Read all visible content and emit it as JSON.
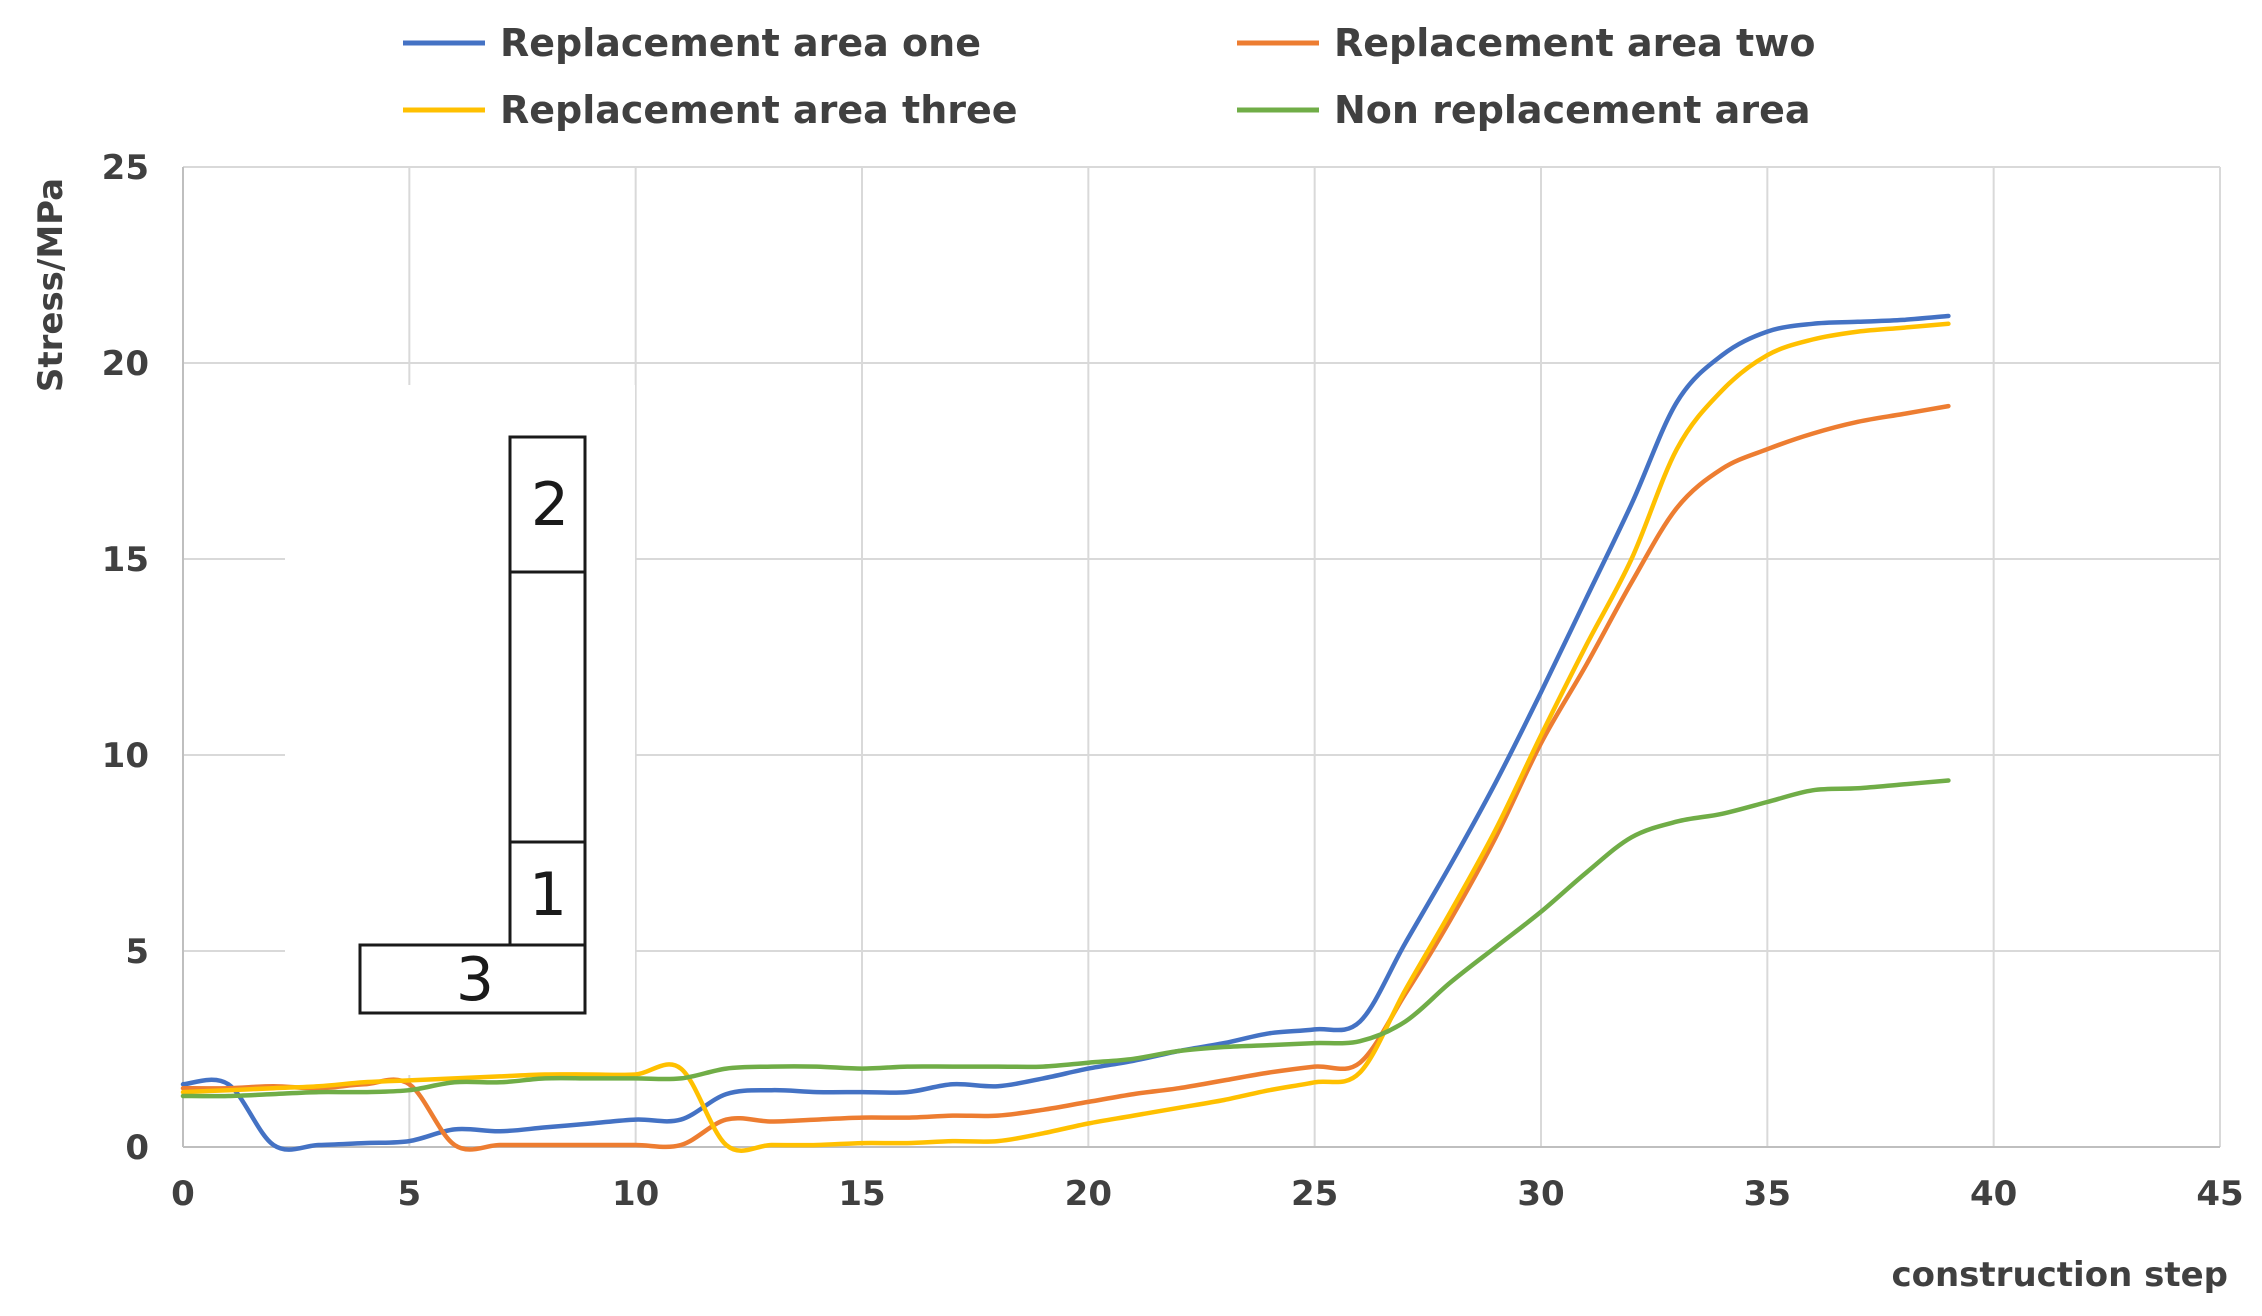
{
  "chart_data": {
    "type": "line",
    "title": "",
    "xlabel": "construction step",
    "ylabel": "Stress/MPa",
    "xlim": [
      0,
      45
    ],
    "ylim": [
      0,
      25
    ],
    "xticks": [
      0,
      5,
      10,
      15,
      20,
      25,
      30,
      35,
      40,
      45
    ],
    "yticks": [
      0,
      5,
      10,
      15,
      20,
      25
    ],
    "grid": true,
    "legend_position": "top",
    "series": [
      {
        "name": "Replacement area one",
        "color": "#4472C4",
        "x": [
          0,
          1,
          2,
          3,
          4,
          5,
          6,
          7,
          8,
          9,
          10,
          11,
          12,
          13,
          14,
          15,
          16,
          17,
          18,
          19,
          20,
          21,
          22,
          23,
          24,
          25,
          26,
          27,
          28,
          29,
          30,
          31,
          32,
          33,
          34,
          35,
          36,
          37,
          38,
          39
        ],
        "values": [
          1.6,
          1.6,
          0.05,
          0.05,
          0.1,
          0.15,
          0.45,
          0.4,
          0.5,
          0.6,
          0.7,
          0.7,
          1.35,
          1.45,
          1.4,
          1.4,
          1.4,
          1.6,
          1.55,
          1.75,
          2.0,
          2.2,
          2.45,
          2.65,
          2.9,
          3.0,
          3.2,
          5.2,
          7.2,
          9.3,
          11.6,
          14.0,
          16.4,
          19.0,
          20.2,
          20.8,
          21.0,
          21.05,
          21.1,
          21.2
        ]
      },
      {
        "name": "Replacement area two",
        "color": "#ED7D31",
        "x": [
          0,
          1,
          2,
          3,
          4,
          5,
          6,
          7,
          8,
          9,
          10,
          11,
          12,
          13,
          14,
          15,
          16,
          17,
          18,
          19,
          20,
          21,
          22,
          23,
          24,
          25,
          26,
          27,
          28,
          29,
          30,
          31,
          32,
          33,
          34,
          35,
          36,
          37,
          38,
          39
        ],
        "values": [
          1.5,
          1.5,
          1.55,
          1.5,
          1.6,
          1.6,
          0.05,
          0.05,
          0.05,
          0.05,
          0.05,
          0.05,
          0.7,
          0.65,
          0.7,
          0.75,
          0.75,
          0.8,
          0.8,
          0.95,
          1.15,
          1.35,
          1.5,
          1.7,
          1.9,
          2.05,
          2.15,
          3.9,
          5.8,
          7.9,
          10.3,
          12.3,
          14.4,
          16.3,
          17.3,
          17.8,
          18.2,
          18.5,
          18.7,
          18.9
        ]
      },
      {
        "name": "Replacement area three",
        "color": "#FFC000",
        "x": [
          0,
          1,
          2,
          3,
          4,
          5,
          6,
          7,
          8,
          9,
          10,
          11,
          12,
          13,
          14,
          15,
          16,
          17,
          18,
          19,
          20,
          21,
          22,
          23,
          24,
          25,
          26,
          27,
          28,
          29,
          30,
          31,
          32,
          33,
          34,
          35,
          36,
          37,
          38,
          39
        ],
        "values": [
          1.4,
          1.45,
          1.5,
          1.55,
          1.65,
          1.7,
          1.75,
          1.8,
          1.85,
          1.85,
          1.85,
          2.0,
          0.05,
          0.05,
          0.05,
          0.1,
          0.1,
          0.15,
          0.15,
          0.35,
          0.6,
          0.8,
          1.0,
          1.2,
          1.45,
          1.65,
          1.9,
          4.0,
          6.0,
          8.1,
          10.5,
          12.8,
          15.0,
          17.8,
          19.3,
          20.2,
          20.6,
          20.8,
          20.9,
          21.0
        ]
      },
      {
        "name": "Non replacement area",
        "color": "#70AD47",
        "x": [
          0,
          1,
          2,
          3,
          4,
          5,
          6,
          7,
          8,
          9,
          10,
          11,
          12,
          13,
          14,
          15,
          16,
          17,
          18,
          19,
          20,
          21,
          22,
          23,
          24,
          25,
          26,
          27,
          28,
          29,
          30,
          31,
          32,
          33,
          34,
          35,
          36,
          37,
          38,
          39
        ],
        "values": [
          1.3,
          1.3,
          1.35,
          1.4,
          1.4,
          1.45,
          1.65,
          1.65,
          1.75,
          1.75,
          1.75,
          1.75,
          2.0,
          2.05,
          2.05,
          2.0,
          2.05,
          2.05,
          2.05,
          2.05,
          2.15,
          2.25,
          2.45,
          2.55,
          2.6,
          2.65,
          2.7,
          3.2,
          4.2,
          5.1,
          6.0,
          7.0,
          7.9,
          8.3,
          8.5,
          8.8,
          9.1,
          9.15,
          9.25,
          9.35
        ]
      }
    ],
    "inset_labels": [
      "2",
      "1",
      "3"
    ]
  }
}
